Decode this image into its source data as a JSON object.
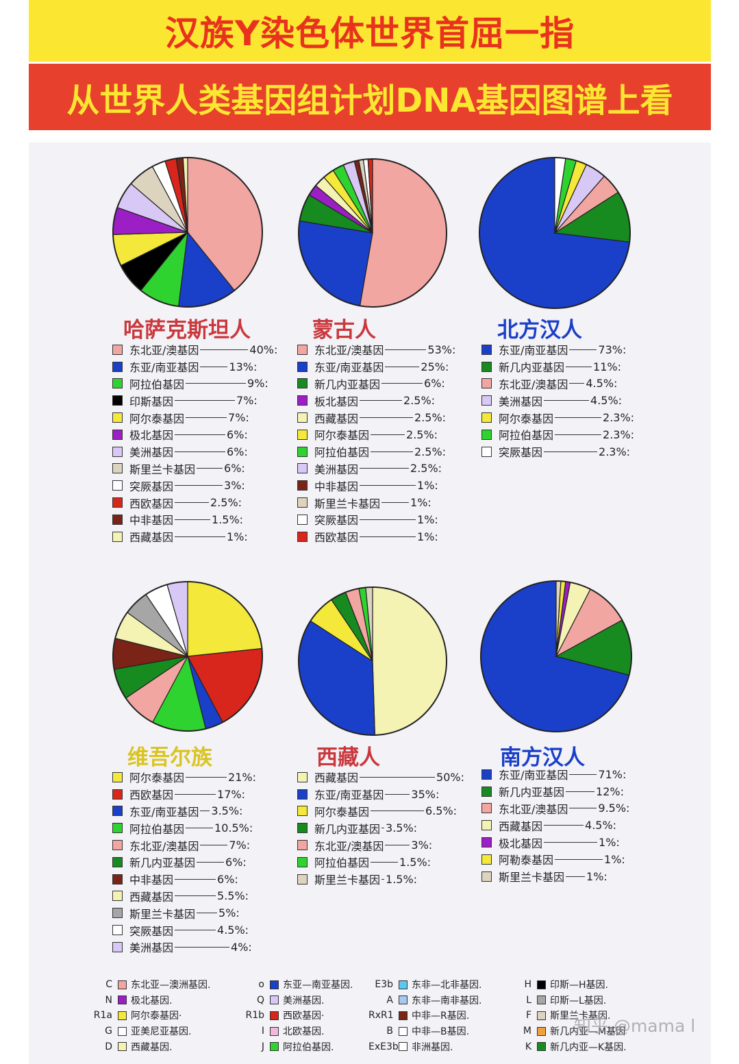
{
  "header": {
    "title": "汉族Y染色体世界首屈一指",
    "subtitle": "从世界人类基因组计划DNA基因图谱上看"
  },
  "colors": {
    "banner_yellow": "#fbe631",
    "banner_red": "#e7402c"
  },
  "chart_data": [
    {
      "type": "pie",
      "title": "哈萨克斯坦人",
      "title_color": "#c9383c",
      "slices": [
        {
          "label": "东北亚/澳基因",
          "value": 40,
          "pct": "40%:",
          "color": "#f2a6a2"
        },
        {
          "label": "东亚/南亚基因",
          "value": 13,
          "pct": "13%:",
          "color": "#1a3fc8"
        },
        {
          "label": "阿拉伯基因",
          "value": 9,
          "pct": "9%:",
          "color": "#2fd32f"
        },
        {
          "label": "印斯基因",
          "value": 7,
          "pct": "7%:",
          "color": "#000000"
        },
        {
          "label": "阿尔泰基因",
          "value": 7,
          "pct": "7%:",
          "color": "#f4e93a"
        },
        {
          "label": "极北基因",
          "value": 6,
          "pct": "6%:",
          "color": "#9b1fc4"
        },
        {
          "label": "美洲基因",
          "value": 6,
          "pct": "6%:",
          "color": "#d8c8f5"
        },
        {
          "label": "斯里兰卡基因",
          "value": 6,
          "pct": "6%:",
          "color": "#ddd4bf"
        },
        {
          "label": "突厥基因",
          "value": 3,
          "pct": "3%:",
          "color": "#ffffff"
        },
        {
          "label": "西欧基因",
          "value": 2.5,
          "pct": "2.5%:",
          "color": "#d8261c"
        },
        {
          "label": "中非基因",
          "value": 1.5,
          "pct": "1.5%:",
          "color": "#7a2316"
        },
        {
          "label": "西藏基因",
          "value": 1,
          "pct": "1%:",
          "color": "#f4f3b4"
        }
      ]
    },
    {
      "type": "pie",
      "title": "蒙古人",
      "title_color": "#c9383c",
      "slices": [
        {
          "label": "东北亚/澳基因",
          "value": 53,
          "pct": "53%:",
          "color": "#f2a6a2"
        },
        {
          "label": "东亚/南亚基因",
          "value": 25,
          "pct": "25%:",
          "color": "#1a3fc8"
        },
        {
          "label": "新几内亚基因",
          "value": 6,
          "pct": "6%:",
          "color": "#178a20"
        },
        {
          "label": "板北基因",
          "value": 2.5,
          "pct": "2.5%:",
          "color": "#9b1fc4"
        },
        {
          "label": "西藏基因",
          "value": 2.5,
          "pct": "2.5%:",
          "color": "#f4f3b4"
        },
        {
          "label": "阿尔泰基因",
          "value": 2.5,
          "pct": "2.5%:",
          "color": "#f4e93a"
        },
        {
          "label": "阿拉伯基因",
          "value": 2.5,
          "pct": "2.5%:",
          "color": "#2fd32f"
        },
        {
          "label": "美洲基因",
          "value": 2.5,
          "pct": "2.5%:",
          "color": "#d8c8f5"
        },
        {
          "label": "中非基因",
          "value": 1,
          "pct": "1%:",
          "color": "#7a2316"
        },
        {
          "label": "斯里兰卡基因",
          "value": 1,
          "pct": "1%:",
          "color": "#ddd4bf"
        },
        {
          "label": "突厥基因",
          "value": 1,
          "pct": "1%:",
          "color": "#ffffff"
        },
        {
          "label": "西欧基因",
          "value": 1,
          "pct": "1%:",
          "color": "#d8261c"
        }
      ]
    },
    {
      "type": "pie",
      "title": "北方汉人",
      "title_color": "#1a3fc8",
      "slices": [
        {
          "label": "东亚/南亚基因",
          "value": 73,
          "pct": "73%:",
          "color": "#1a3fc8"
        },
        {
          "label": "新几内亚基因",
          "value": 11,
          "pct": "11%:",
          "color": "#178a20"
        },
        {
          "label": "东北亚/澳基因",
          "value": 4.5,
          "pct": "4.5%:",
          "color": "#f2a6a2"
        },
        {
          "label": "美洲基因",
          "value": 4.5,
          "pct": "4.5%:",
          "color": "#d8c8f5"
        },
        {
          "label": "阿尔泰基因",
          "value": 2.3,
          "pct": "2.3%:",
          "color": "#f4e93a"
        },
        {
          "label": "阿拉伯基因",
          "value": 2.3,
          "pct": "2.3%:",
          "color": "#2fd32f"
        },
        {
          "label": "突厥基因",
          "value": 2.3,
          "pct": "2.3%:",
          "color": "#ffffff"
        }
      ]
    },
    {
      "type": "pie",
      "title": "维吾尔族",
      "title_color": "#d9c420",
      "slices": [
        {
          "label": "阿尔泰基因",
          "value": 21,
          "pct": "21%:",
          "color": "#f4e93a"
        },
        {
          "label": "西欧基因",
          "value": 17,
          "pct": "17%:",
          "color": "#d8261c"
        },
        {
          "label": "东亚/南亚基因",
          "value": 3.5,
          "pct": "3.5%:",
          "color": "#1a3fc8"
        },
        {
          "label": "阿拉伯基因",
          "value": 10.5,
          "pct": "10.5%:",
          "color": "#2fd32f"
        },
        {
          "label": "东北亚/澳基因",
          "value": 7,
          "pct": "7%:",
          "color": "#f2a6a2"
        },
        {
          "label": "新几内亚基因",
          "value": 6,
          "pct": "6%:",
          "color": "#178a20"
        },
        {
          "label": "中非基因",
          "value": 6,
          "pct": "6%:",
          "color": "#7a2316"
        },
        {
          "label": "西藏基因",
          "value": 5.5,
          "pct": "5.5%:",
          "color": "#f4f3b4"
        },
        {
          "label": "斯里兰卡基因",
          "value": 5,
          "pct": "5%:",
          "color": "#a6a6a6"
        },
        {
          "label": "突厥基因",
          "value": 4.5,
          "pct": "4.5%:",
          "color": "#ffffff"
        },
        {
          "label": "美洲基因",
          "value": 4,
          "pct": "4%:",
          "color": "#d8c8f5"
        }
      ]
    },
    {
      "type": "pie",
      "title": "西藏人",
      "title_color": "#c9383c",
      "slices": [
        {
          "label": "西藏基因",
          "value": 50,
          "pct": "50%:",
          "color": "#f4f3b4"
        },
        {
          "label": "东亚/南亚基因",
          "value": 35,
          "pct": "35%:",
          "color": "#1a3fc8"
        },
        {
          "label": "阿尔泰基因",
          "value": 6.5,
          "pct": "6.5%:",
          "color": "#f4e93a"
        },
        {
          "label": "新几内亚基因",
          "value": 3.5,
          "pct": "3.5%:",
          "color": "#178a20"
        },
        {
          "label": "东北亚/澳基因",
          "value": 3,
          "pct": "3%:",
          "color": "#f2a6a2"
        },
        {
          "label": "阿拉伯基因",
          "value": 1.5,
          "pct": "1.5%:",
          "color": "#2fd32f"
        },
        {
          "label": "斯里兰卡基因",
          "value": 1.5,
          "pct": "1.5%:",
          "color": "#ddd4bf"
        }
      ]
    },
    {
      "type": "pie",
      "title": "南方汉人",
      "title_color": "#1a3fc8",
      "slices": [
        {
          "label": "东亚/南亚基因",
          "value": 71,
          "pct": "71%:",
          "color": "#1a3fc8"
        },
        {
          "label": "新几内亚基因",
          "value": 12,
          "pct": "12%:",
          "color": "#178a20"
        },
        {
          "label": "东北亚/澳基因",
          "value": 9.5,
          "pct": "9.5%:",
          "color": "#f2a6a2"
        },
        {
          "label": "西藏基因",
          "value": 4.5,
          "pct": "4.5%:",
          "color": "#f4f3b4"
        },
        {
          "label": "极北基因",
          "value": 1,
          "pct": "1%:",
          "color": "#9b1fc4"
        },
        {
          "label": "阿勒泰基因",
          "value": 1,
          "pct": "1%:",
          "color": "#f4e93a"
        },
        {
          "label": "斯里兰卡基因",
          "value": 1,
          "pct": "1%:",
          "color": "#ddd4bf"
        }
      ]
    }
  ],
  "haplogroup_key": [
    [
      {
        "code": "C",
        "label": "东北亚—澳洲基因.",
        "color": "#f2a6a2"
      },
      {
        "code": "N",
        "label": "极北基因.",
        "color": "#9b1fc4"
      },
      {
        "code": "R1a",
        "label": "阿尔泰基因·",
        "color": "#f4e93a"
      },
      {
        "code": "G",
        "label": "亚美尼亚基因.",
        "color": "#ffffff"
      },
      {
        "code": "D",
        "label": "西藏基因.",
        "color": "#f4f3b4"
      }
    ],
    [
      {
        "code": "o",
        "label": "东亚—南亚基因.",
        "color": "#1a3fc8"
      },
      {
        "code": "Q",
        "label": "美洲基因.",
        "color": "#d8c8f5"
      },
      {
        "code": "R1b",
        "label": "西欧基因·",
        "color": "#d8261c"
      },
      {
        "code": "I",
        "label": "北欧基因.",
        "color": "#f0b8dc"
      },
      {
        "code": "J",
        "label": "阿拉伯基因.",
        "color": "#2fd32f"
      }
    ],
    [
      {
        "code": "E3b",
        "label": "东非—北非基因.",
        "color": "#5cc8ef"
      },
      {
        "code": "A",
        "label": "东非—南非基因.",
        "color": "#a8c8f0"
      },
      {
        "code": "RxR1",
        "label": "中非—R基因.",
        "color": "#7a2316"
      },
      {
        "code": "B",
        "label": "中非—B基因.",
        "color": "#ffffff"
      },
      {
        "code": "ExE3b",
        "label": "非洲基因.",
        "color": "#ffffff"
      }
    ],
    [
      {
        "code": "H",
        "label": "印斯—H基因.",
        "color": "#000000"
      },
      {
        "code": "L",
        "label": "印斯—L基因.",
        "color": "#a6a6a6"
      },
      {
        "code": "F",
        "label": "斯里兰卡基因.",
        "color": "#ddd4bf"
      },
      {
        "code": "M",
        "label": "新几内亚—M基因",
        "color": "#f0a040"
      },
      {
        "code": "K",
        "label": "新几内亚—K基因.",
        "color": "#178a20"
      }
    ]
  ],
  "watermark": "知乎 @mama l"
}
